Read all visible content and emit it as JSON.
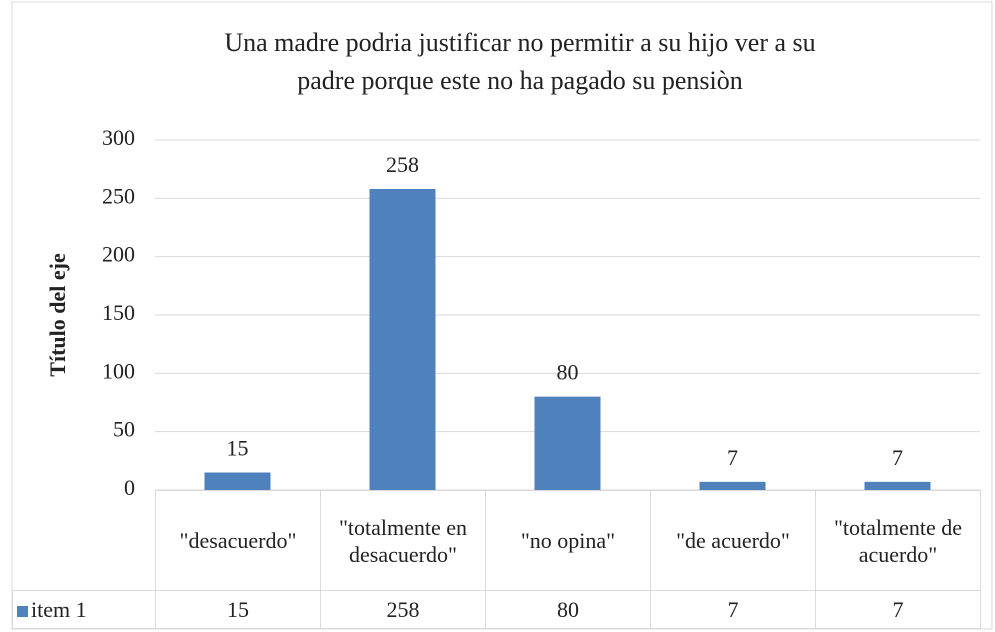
{
  "chart_data": {
    "type": "bar",
    "title_lines": [
      "Una madre podria justificar no permitir a su hijo ver a su",
      "padre porque este no ha pagado su pensiòn"
    ],
    "y_label": "Título del eje",
    "categories": [
      "\"desacuerdo\"",
      "\"totalmente en desacuerdo\"",
      "\"no opina\"",
      "\"de acuerdo\"",
      "\"totalmente de acuerdo\""
    ],
    "series": [
      {
        "name": "item 1",
        "color": "#4f81bd",
        "values": [
          15,
          258,
          80,
          7,
          7
        ]
      }
    ],
    "ylim": [
      0,
      300
    ],
    "yticks": [
      0,
      50,
      100,
      150,
      200,
      250,
      300
    ],
    "grid": true
  }
}
